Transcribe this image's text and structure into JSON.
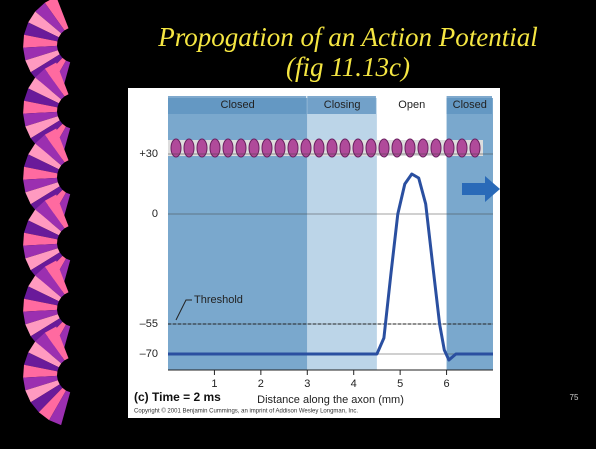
{
  "slide": {
    "title": "Propogation of an Action Potential",
    "subtitle": "(fig 11.13c)",
    "page_number": "75"
  },
  "chart_data": {
    "type": "line",
    "caption": "(c) Time = 2 ms",
    "credit": "Copyright © 2001 Benjamin Cummings, an imprint of Addison Wesley Longman, Inc.",
    "xlabel": "Distance along the axon (mm)",
    "xlim": [
      0,
      7
    ],
    "xticks": [
      1,
      2,
      3,
      4,
      5,
      6
    ],
    "ylim": [
      -78,
      58
    ],
    "yticks": [
      {
        "value": 30,
        "label": "+30"
      },
      0,
      {
        "value": -55,
        "label": "–55"
      },
      {
        "value": -70,
        "label": "–70"
      }
    ],
    "regions": [
      {
        "label": "Closed",
        "start": 0,
        "end": 3,
        "color": "#7aa8cd"
      },
      {
        "label": "Closing",
        "start": 3,
        "end": 4.5,
        "color": "#bcd5e8"
      },
      {
        "label": "Open",
        "start": 4.5,
        "end": 6,
        "color": "#ffffff"
      },
      {
        "label": "Closed",
        "start": 6,
        "end": 7,
        "color": "#7aa8cd"
      }
    ],
    "threshold": {
      "label": "Threshold",
      "value": -55
    },
    "series": [
      {
        "color": "#2a4fa0",
        "x": [
          0,
          4.5,
          4.65,
          4.8,
          4.95,
          5.1,
          5.25,
          5.4,
          5.55,
          5.7,
          5.85,
          5.95,
          6.05,
          6.2,
          7
        ],
        "values": [
          -70,
          -70,
          -62,
          -30,
          0,
          15,
          20,
          18,
          5,
          -25,
          -55,
          -68,
          -73,
          -70,
          -70
        ]
      }
    ]
  }
}
